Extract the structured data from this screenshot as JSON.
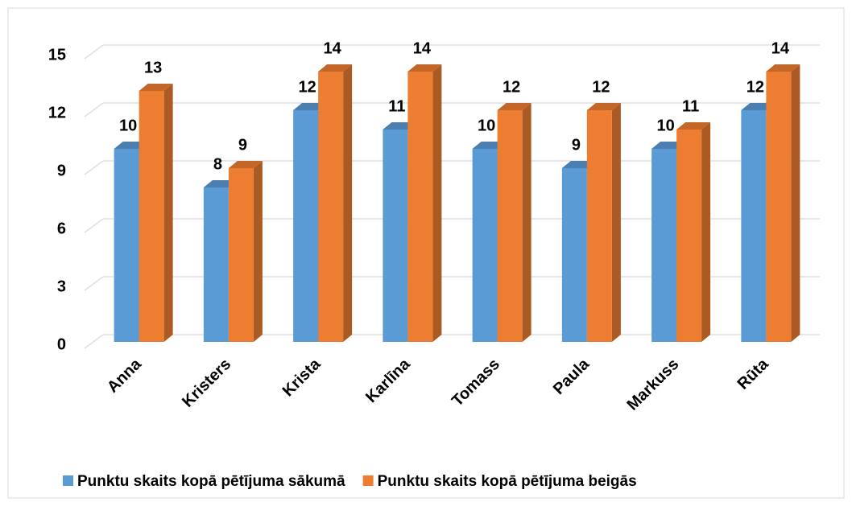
{
  "chart_data": {
    "type": "bar3d",
    "categories": [
      "Anna",
      "Kristers",
      "Krista",
      "Karlīna",
      "Tomass",
      "Paula",
      "Markuss",
      "Rūta"
    ],
    "series": [
      {
        "name": "Punktu skaits kopā pētījuma sākumā",
        "color": "#5b9bd5",
        "values": [
          10,
          8,
          12,
          11,
          10,
          9,
          10,
          12
        ]
      },
      {
        "name": "Punktu skaits kopā pētījuma beigās",
        "color": "#ed7d31",
        "values": [
          13,
          9,
          14,
          14,
          12,
          12,
          11,
          14
        ]
      }
    ],
    "ylim": [
      0,
      15
    ],
    "yticks": [
      0,
      3,
      6,
      9,
      12,
      15
    ],
    "grid": true,
    "legend": "bottom"
  }
}
